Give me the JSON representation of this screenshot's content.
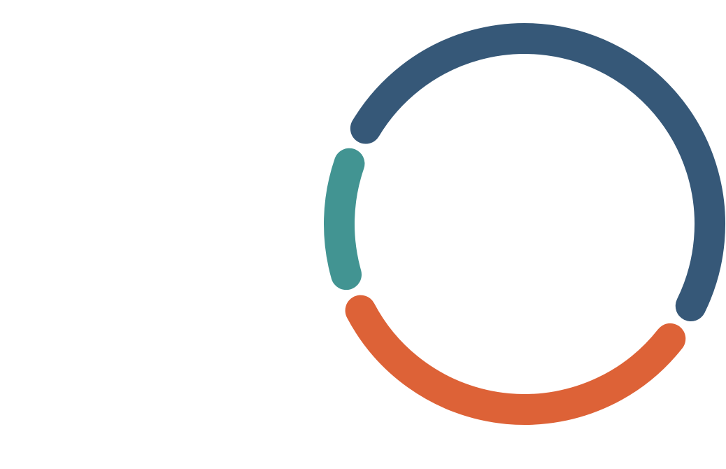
{
  "chart_data": {
    "type": "pie",
    "variant": "donut",
    "title": "",
    "legend": "none",
    "slices": [
      {
        "value": 52,
        "color": "#365878"
      },
      {
        "value": 35,
        "color": "#DD6237"
      },
      {
        "value": 13,
        "color": "#429492"
      }
    ]
  }
}
